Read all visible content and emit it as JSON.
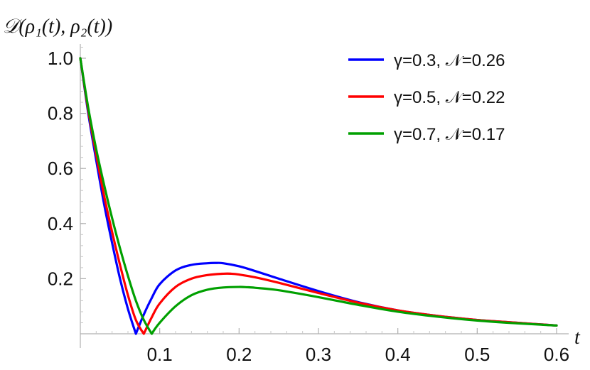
{
  "chart_data": {
    "type": "line",
    "title": "",
    "ylabel": "𝒟(ρ₁(t), ρ₂(t))",
    "xlabel": "t",
    "xlim": [
      0,
      0.6
    ],
    "ylim": [
      0,
      1.05
    ],
    "xticks": [
      {
        "value": 0.1,
        "label": "0.1"
      },
      {
        "value": 0.2,
        "label": "0.2"
      },
      {
        "value": 0.3,
        "label": "0.3"
      },
      {
        "value": 0.4,
        "label": "0.4"
      },
      {
        "value": 0.5,
        "label": "0.5"
      },
      {
        "value": 0.6,
        "label": "0.6"
      }
    ],
    "yticks": [
      {
        "value": 0.2,
        "label": "0.2"
      },
      {
        "value": 0.4,
        "label": "0.4"
      },
      {
        "value": 0.6,
        "label": "0.6"
      },
      {
        "value": 0.8,
        "label": "0.8"
      },
      {
        "value": 1.0,
        "label": "1.0"
      }
    ],
    "grid": false,
    "legend_position": "top-right",
    "series": [
      {
        "name": "γ=0.3, 𝒩=0.26",
        "color": "#0000ff",
        "x": [
          0,
          0.01,
          0.02,
          0.03,
          0.04,
          0.05,
          0.06,
          0.07,
          0.08,
          0.09,
          0.1,
          0.12,
          0.14,
          0.16,
          0.17,
          0.18,
          0.2,
          0.22,
          0.25,
          0.3,
          0.35,
          0.4,
          0.45,
          0.5,
          0.55,
          0.6
        ],
        "y": [
          1.0,
          0.8,
          0.63,
          0.47,
          0.33,
          0.2,
          0.09,
          0.0,
          0.07,
          0.13,
          0.18,
          0.23,
          0.25,
          0.256,
          0.257,
          0.256,
          0.245,
          0.228,
          0.2,
          0.155,
          0.115,
          0.085,
          0.065,
          0.05,
          0.04,
          0.03
        ]
      },
      {
        "name": "γ=0.5, 𝒩=0.22",
        "color": "#ff0000",
        "x": [
          0,
          0.01,
          0.02,
          0.03,
          0.04,
          0.05,
          0.06,
          0.07,
          0.08,
          0.09,
          0.1,
          0.12,
          0.14,
          0.16,
          0.18,
          0.19,
          0.2,
          0.22,
          0.25,
          0.3,
          0.35,
          0.4,
          0.45,
          0.5,
          0.55,
          0.6
        ],
        "y": [
          1.0,
          0.81,
          0.65,
          0.5,
          0.37,
          0.25,
          0.14,
          0.05,
          0.0,
          0.06,
          0.11,
          0.17,
          0.2,
          0.213,
          0.218,
          0.218,
          0.215,
          0.205,
          0.185,
          0.148,
          0.113,
          0.085,
          0.065,
          0.05,
          0.04,
          0.03
        ]
      },
      {
        "name": "γ=0.7, 𝒩=0.17",
        "color": "#00a000",
        "x": [
          0,
          0.01,
          0.02,
          0.03,
          0.04,
          0.05,
          0.06,
          0.07,
          0.08,
          0.09,
          0.1,
          0.12,
          0.14,
          0.16,
          0.18,
          0.2,
          0.21,
          0.22,
          0.25,
          0.3,
          0.35,
          0.4,
          0.45,
          0.5,
          0.55,
          0.6
        ],
        "y": [
          1.0,
          0.82,
          0.67,
          0.54,
          0.42,
          0.31,
          0.21,
          0.12,
          0.05,
          0.0,
          0.04,
          0.1,
          0.14,
          0.16,
          0.168,
          0.17,
          0.169,
          0.167,
          0.158,
          0.133,
          0.105,
          0.08,
          0.062,
          0.048,
          0.038,
          0.03
        ]
      }
    ]
  }
}
